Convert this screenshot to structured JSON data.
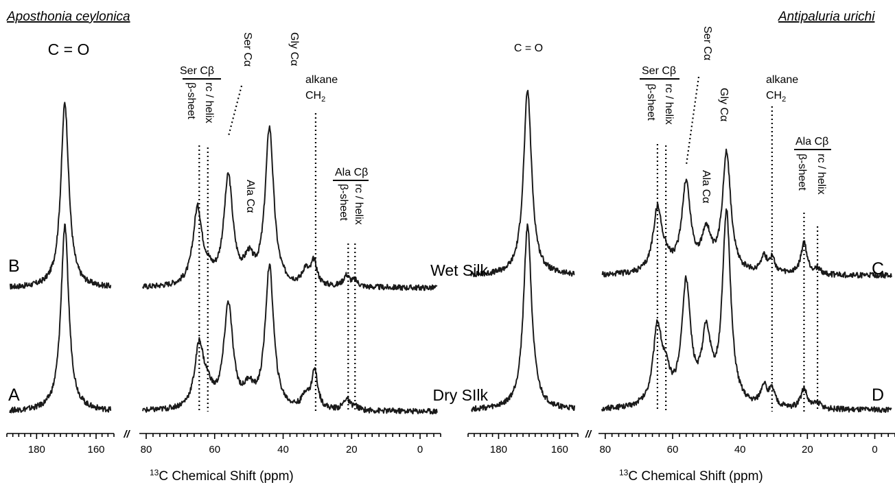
{
  "species": [
    "Aposthonia ceylonica",
    "Antipaluria urichi"
  ],
  "panel_letters": {
    "A": "A",
    "B": "B",
    "C": "C",
    "D": "D"
  },
  "sample_labels": {
    "wet": "Wet Silk",
    "dry": "Dry SIlk"
  },
  "peak_labels": {
    "co": "C = O",
    "ser_cb": "Ser Cβ",
    "beta_sheet": "β-sheet",
    "rc_helix": "rc / helix",
    "ser_ca": "Ser Cα",
    "gly_ca": "Gly Cα",
    "ala_ca": "Ala Cα",
    "alkane": "alkane",
    "ch2": "CH",
    "ch2_sub": "2",
    "ala_cb": "Ala Cβ"
  },
  "axis": {
    "title_sup": "13",
    "title": "C Chemical Shift (ppm)",
    "left_ticks": [
      "180",
      "160"
    ],
    "right_ticks": [
      "80",
      "60",
      "40",
      "20",
      "0"
    ],
    "break_mark": "//"
  },
  "chart_data": [
    {
      "type": "line",
      "title": "Aposthonia ceylonica",
      "xlabel": "13C Chemical Shift (ppm)",
      "ylabel": "",
      "x_segments": [
        [
          190,
          154
        ],
        [
          82,
          -6
        ]
      ],
      "x_reversed": true,
      "series": [
        {
          "name": "Wet Silk",
          "panel": "B",
          "peaks": [
            [
              170.5,
              1.0
            ],
            [
              65,
              0.41
            ],
            [
              62,
              0.05
            ],
            [
              56,
              0.58
            ],
            [
              50,
              0.12
            ],
            [
              44,
              0.85
            ],
            [
              33.5,
              0.08
            ],
            [
              31,
              0.13
            ],
            [
              21.5,
              0.06
            ],
            [
              19,
              0.03
            ]
          ]
        },
        {
          "name": "Dry SIlk",
          "panel": "A",
          "peaks": [
            [
              170.5,
              1.0
            ],
            [
              64.5,
              0.34
            ],
            [
              62,
              0.08
            ],
            [
              56,
              0.56
            ],
            [
              50,
              0.1
            ],
            [
              44,
              0.77
            ],
            [
              33.5,
              0.07
            ],
            [
              30.8,
              0.21
            ],
            [
              21.5,
              0.06
            ],
            [
              19,
              0.02
            ]
          ]
        }
      ],
      "reference_lines_ppm": [
        64.5,
        62,
        30.5,
        21,
        19
      ]
    },
    {
      "type": "line",
      "title": "Antipaluria urichi",
      "xlabel": "13C Chemical Shift (ppm)",
      "ylabel": "",
      "x_segments": [
        [
          190,
          154
        ],
        [
          82,
          -6
        ]
      ],
      "x_reversed": true,
      "series": [
        {
          "name": "Wet Silk",
          "panel": "C",
          "peaks": [
            [
              170.5,
              1.0
            ],
            [
              64.5,
              0.34
            ],
            [
              62,
              0.05
            ],
            [
              56,
              0.48
            ],
            [
              50,
              0.21
            ],
            [
              44,
              0.65
            ],
            [
              33,
              0.09
            ],
            [
              30.5,
              0.08
            ],
            [
              21,
              0.17
            ],
            [
              17,
              0.03
            ]
          ]
        },
        {
          "name": "Dry SIlk",
          "panel": "D",
          "peaks": [
            [
              170.5,
              1.0
            ],
            [
              64.5,
              0.41
            ],
            [
              62,
              0.13
            ],
            [
              56,
              0.65
            ],
            [
              50,
              0.37
            ],
            [
              44,
              1.04
            ],
            [
              33,
              0.11
            ],
            [
              30.5,
              0.09
            ],
            [
              21,
              0.11
            ],
            [
              17,
              0.03
            ]
          ]
        }
      ],
      "reference_lines_ppm": [
        64.5,
        62,
        30.5,
        21,
        17
      ]
    }
  ]
}
